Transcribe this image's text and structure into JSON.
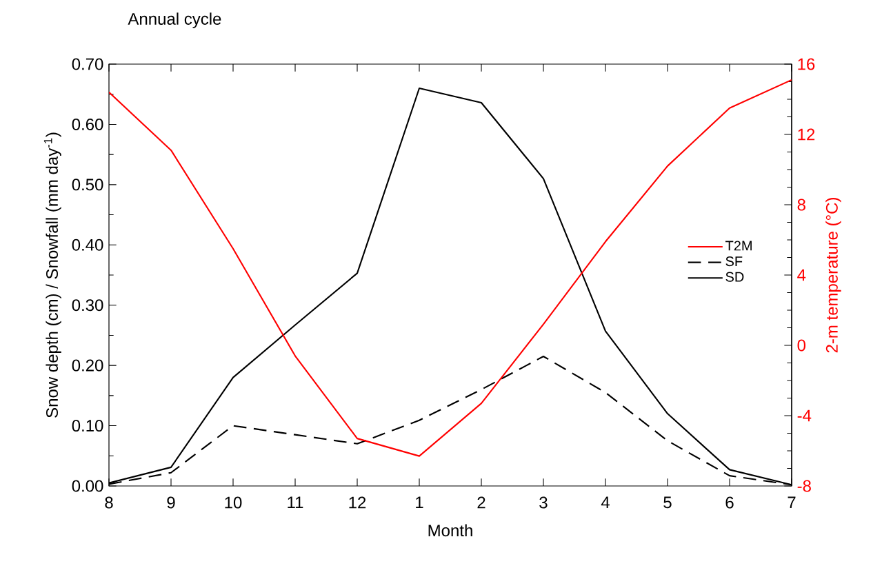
{
  "chart_data": {
    "type": "line",
    "title": "Annual cycle",
    "xlabel": "Month",
    "ylabel": "Snow depth (cm) / Snowfall (mm day$^{-1}$)",
    "y2label": "2-m temperature (°C)",
    "categories": [
      "8",
      "9",
      "10",
      "11",
      "12",
      "1",
      "2",
      "3",
      "4",
      "5",
      "6",
      "7"
    ],
    "series": [
      {
        "name": "T2M",
        "color": "#ff0000",
        "axis": "y2",
        "values": [
          14.4,
          11.1,
          5.5,
          -0.6,
          -5.3,
          -6.3,
          -3.3,
          1.2,
          5.9,
          10.2,
          13.5,
          15.1
        ]
      },
      {
        "name": "SF",
        "color": "#000000",
        "line_style": "dashed",
        "values": [
          0.003,
          0.022,
          0.1,
          0.085,
          0.07,
          0.109,
          0.16,
          0.215,
          0.155,
          0.075,
          0.017,
          0.002
        ]
      },
      {
        "name": "SD",
        "color": "#000000",
        "values": [
          0.005,
          0.031,
          0.18,
          0.267,
          0.353,
          0.66,
          0.636,
          0.51,
          0.257,
          0.12,
          0.027,
          0.002
        ]
      }
    ],
    "ylim": [
      0,
      0.7
    ],
    "yticks": [
      {
        "value": 0,
        "label": "0.00"
      },
      {
        "value": 0.1,
        "label": "0.10"
      },
      {
        "value": 0.2,
        "label": "0.20"
      },
      {
        "value": 0.3,
        "label": "0.30"
      },
      {
        "value": 0.4,
        "label": "0.40"
      },
      {
        "value": 0.5,
        "label": "0.50"
      },
      {
        "value": 0.6,
        "label": "0.60"
      },
      {
        "value": 0.7,
        "label": "0.70"
      }
    ],
    "y2lim": [
      -8,
      16
    ],
    "y2ticks": [
      -8,
      -4,
      0,
      4,
      8,
      12,
      16
    ],
    "legend": "right",
    "marker": "none",
    "line_style": "solid"
  }
}
